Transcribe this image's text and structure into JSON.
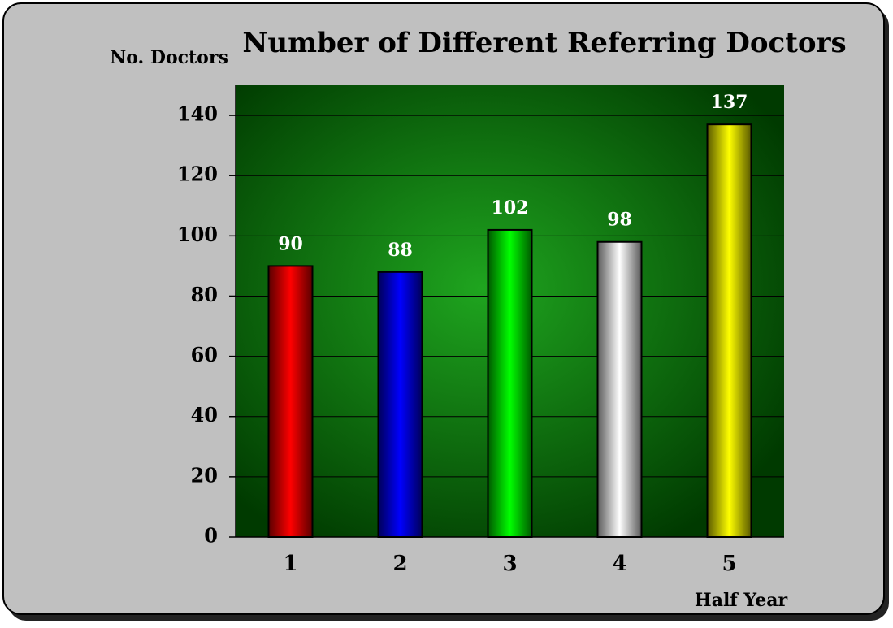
{
  "chart_data": {
    "type": "bar",
    "title": "Number of Different Referring Doctors",
    "y_label": "No. Doctors",
    "x_label": "Half Year",
    "categories": [
      "1",
      "2",
      "3",
      "4",
      "5"
    ],
    "values": [
      90,
      88,
      102,
      98,
      137
    ],
    "colors": [
      "#ff0000",
      "#0000ff",
      "#00ff00",
      "#ffffff",
      "#ffff00"
    ],
    "ylim": [
      0,
      150
    ],
    "yticks": [
      0,
      20,
      40,
      60,
      80,
      100,
      120,
      140
    ],
    "grid": true
  }
}
